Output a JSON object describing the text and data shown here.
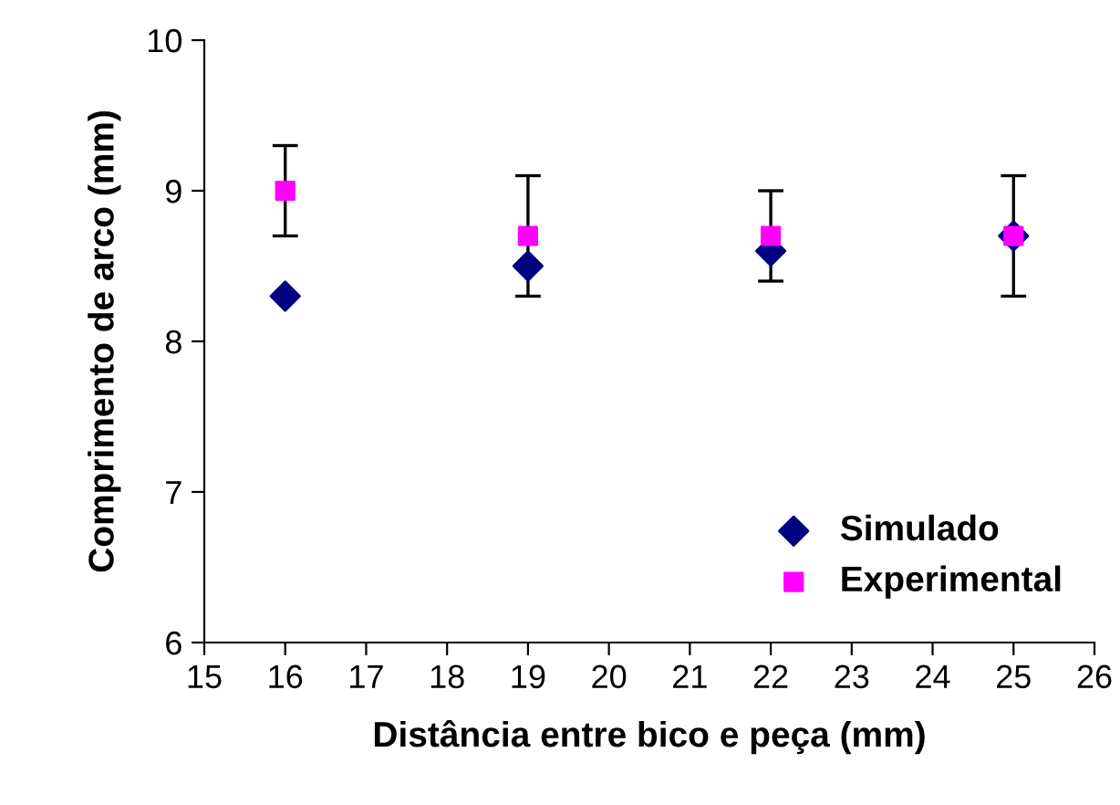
{
  "chart_data": {
    "type": "scatter",
    "xlabel": "Distância entre bico e peça (mm)",
    "ylabel": "Comprimento de arco (mm)",
    "x": [
      16,
      19,
      22,
      25
    ],
    "series": [
      {
        "name": "Simulado",
        "color": "#000080",
        "marker": "diamond",
        "values": [
          8.3,
          8.5,
          8.6,
          8.7
        ]
      },
      {
        "name": "Experimental",
        "color": "#ff00ff",
        "marker": "square",
        "values": [
          9.0,
          8.7,
          8.7,
          8.7
        ],
        "errors": [
          [
            8.7,
            9.3
          ],
          [
            8.3,
            9.1
          ],
          [
            8.4,
            9.0
          ],
          [
            8.3,
            9.1
          ]
        ]
      }
    ],
    "xlim": [
      15,
      26
    ],
    "xticks": [
      15,
      16,
      17,
      18,
      19,
      20,
      21,
      22,
      23,
      24,
      25,
      26
    ],
    "ylim": [
      6,
      10
    ],
    "yticks": [
      6,
      7,
      8,
      9,
      10
    ],
    "grid": false,
    "legend": "bottom right"
  }
}
